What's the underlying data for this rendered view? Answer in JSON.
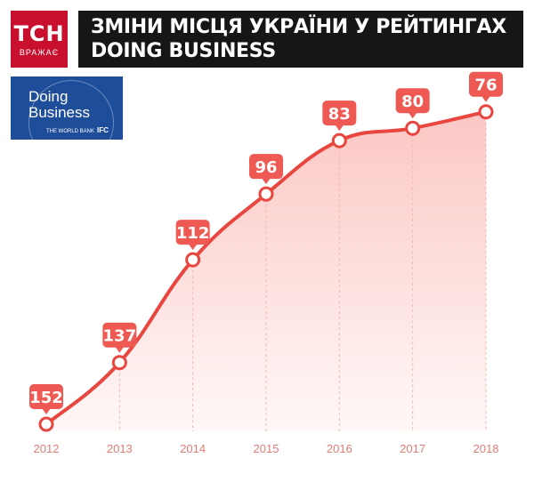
{
  "header": {
    "logo_text": "ТСН",
    "logo_subtext": "ВРАЖАЄ",
    "title_line1": "ЗМІНИ МІСЦЯ УКРАЇНИ У РЕЙТИНГАХ",
    "title_line2": "DOING BUSINESS"
  },
  "badge": {
    "word1": "Doing",
    "word2": "Business",
    "footer_small": "THE WORLD BANK",
    "footer_ifc": "IFC"
  },
  "colors": {
    "accent": "#e8463f",
    "label_bg": "#ee5a53",
    "area_top": "#fbc4c0",
    "axis_text": "#e07d76",
    "brand_red": "#c8102e",
    "title_bg": "#161616",
    "db_blue": "#1e4d9a"
  },
  "chart_data": {
    "type": "area",
    "title": "",
    "xlabel": "",
    "ylabel": "",
    "x": [
      "2012",
      "2013",
      "2014",
      "2015",
      "2016",
      "2017",
      "2018"
    ],
    "values": [
      152,
      137,
      112,
      96,
      83,
      80,
      76
    ],
    "ylim": [
      160,
      70
    ],
    "y_inverted": true,
    "grid": false,
    "legend": "none",
    "data_labels": true,
    "gridline_at_points": true
  }
}
